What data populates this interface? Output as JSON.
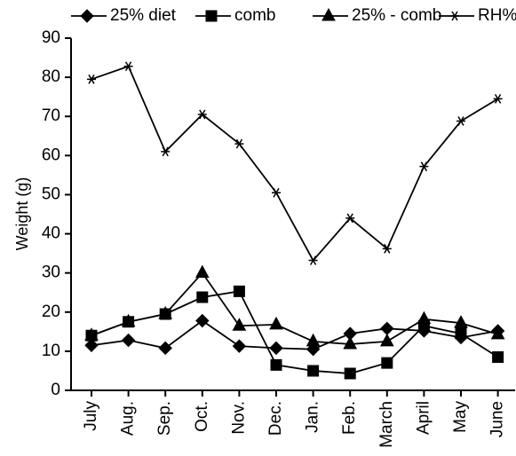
{
  "chart_data": {
    "type": "line",
    "y_label": "Weight (g)",
    "categories": [
      "July",
      "Aug.",
      "Sep.",
      "Oct.",
      "Nov.",
      "Dec.",
      "Jan.",
      "Feb.",
      "March",
      "April",
      "May",
      "June"
    ],
    "series": [
      {
        "name": "25% diet",
        "color": "#000000",
        "marker": "diamond",
        "values": [
          11.5,
          12.8,
          10.8,
          17.8,
          11.3,
          10.8,
          10.5,
          14.5,
          15.8,
          15.2,
          13.5,
          15.2
        ]
      },
      {
        "name": "comb",
        "color": "#000000",
        "marker": "square",
        "values": [
          14,
          17.5,
          19.5,
          23.8,
          25.3,
          6.5,
          5,
          4.3,
          7,
          16.5,
          14.5,
          8.5
        ]
      },
      {
        "name": "25% - comb",
        "color": "#000000",
        "marker": "triangle",
        "values": [
          14,
          17.5,
          19.5,
          30,
          16.5,
          16.8,
          12.5,
          11.8,
          12.5,
          18.2,
          17.2,
          14.3
        ]
      },
      {
        "name": "RH%",
        "color": "#000000",
        "marker": "star",
        "values": [
          79.5,
          82.8,
          61,
          70.5,
          63,
          50.5,
          33.2,
          44,
          36.2,
          57.2,
          68.8,
          74.5
        ]
      }
    ],
    "ylim": [
      0,
      90
    ],
    "yticks": [
      0,
      10,
      20,
      30,
      40,
      50,
      60,
      70,
      80,
      90
    ],
    "grid": false,
    "legend": "top"
  }
}
